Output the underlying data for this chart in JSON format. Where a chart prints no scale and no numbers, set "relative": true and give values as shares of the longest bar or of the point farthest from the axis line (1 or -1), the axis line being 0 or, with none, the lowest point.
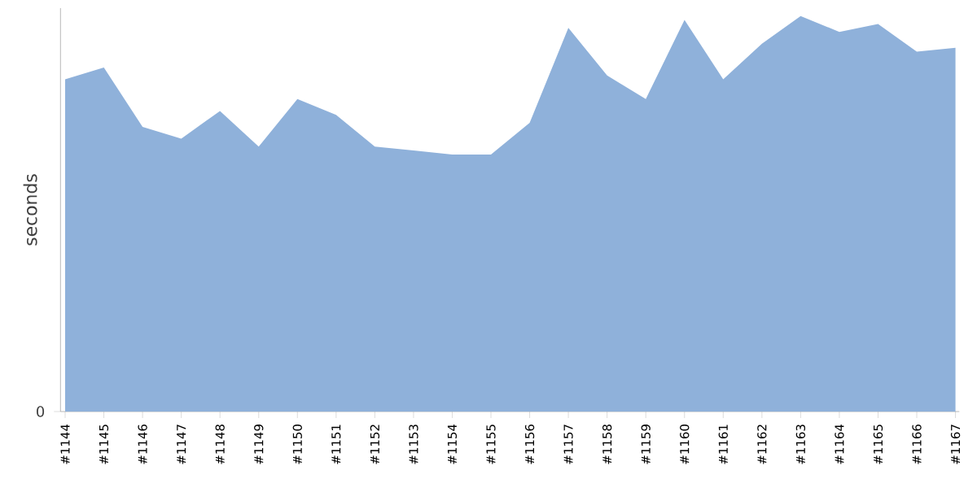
{
  "chart_data": {
    "type": "area",
    "relative": true,
    "ylabel": "seconds",
    "annotations": [
      "0"
    ],
    "categories": [
      "#1144",
      "#1145",
      "#1146",
      "#1147",
      "#1148",
      "#1149",
      "#1150",
      "#1151",
      "#1152",
      "#1153",
      "#1154",
      "#1155",
      "#1156",
      "#1157",
      "#1158",
      "#1159",
      "#1160",
      "#1161",
      "#1162",
      "#1163",
      "#1164",
      "#1165",
      "#1166",
      "#1167"
    ],
    "series": [
      {
        "color": "#8fb1da",
        "values": [
          0.84,
          0.87,
          0.72,
          0.69,
          0.76,
          0.67,
          0.79,
          0.75,
          0.67,
          0.66,
          0.65,
          0.65,
          0.73,
          0.97,
          0.85,
          0.79,
          0.99,
          0.84,
          0.93,
          1,
          0.96,
          0.98,
          0.91,
          0.92
        ]
      }
    ],
    "grid": false
  }
}
